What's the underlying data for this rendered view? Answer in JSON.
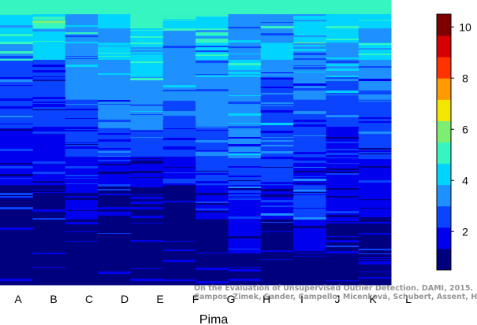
{
  "chart_data": {
    "type": "heatmap",
    "xlabel": "Pima",
    "columns": [
      "A",
      "B",
      "C",
      "D",
      "E",
      "F",
      "G",
      "H",
      "I",
      "J",
      "K",
      "L"
    ],
    "colorbar": {
      "ticks": [
        "2",
        "4",
        "6",
        "8",
        "10"
      ],
      "tick_values": [
        2,
        4,
        6,
        8,
        10
      ],
      "range": [
        0.5,
        10.5
      ],
      "palette": [
        "#00007f",
        "#0000ee",
        "#0b44ff",
        "#1e90ff",
        "#00d4ff",
        "#36f5c0",
        "#7dee72",
        "#f5e600",
        "#ff9a00",
        "#ff3300",
        "#d40000",
        "#7f0000"
      ]
    },
    "bands": [
      {
        "top": 0.0,
        "height": 0.05,
        "values": [
          5.0,
          5.0,
          5.0,
          5.0,
          5.0,
          5.0,
          5.0,
          5.0,
          5.0,
          5.0,
          5.0,
          5.0
        ]
      },
      {
        "top": 0.05,
        "height": 0.05,
        "values": [
          4.2,
          4.8,
          3.6,
          4.0,
          5.0,
          4.3,
          4.0,
          3.4,
          3.8,
          4.5,
          4.0,
          4.2
        ]
      },
      {
        "top": 0.1,
        "height": 0.05,
        "values": [
          4.0,
          4.5,
          3.8,
          3.5,
          4.5,
          3.8,
          4.8,
          3.6,
          3.2,
          4.5,
          4.4,
          3.6
        ]
      },
      {
        "top": 0.15,
        "height": 0.06,
        "values": [
          3.8,
          4.0,
          3.3,
          4.0,
          4.3,
          3.7,
          3.9,
          3.4,
          4.4,
          3.7,
          3.8,
          4.2
        ]
      },
      {
        "top": 0.21,
        "height": 0.06,
        "values": [
          2.7,
          2.5,
          3.0,
          3.6,
          4.6,
          3.5,
          3.2,
          4.0,
          3.0,
          3.4,
          3.1,
          3.7
        ]
      },
      {
        "top": 0.27,
        "height": 0.08,
        "values": [
          2.3,
          2.4,
          3.0,
          3.2,
          3.8,
          3.0,
          3.4,
          3.6,
          2.6,
          3.0,
          2.8,
          3.0
        ]
      },
      {
        "top": 0.35,
        "height": 0.1,
        "values": [
          2.3,
          2.3,
          2.4,
          3.0,
          3.2,
          2.6,
          3.3,
          3.4,
          2.7,
          2.7,
          2.5,
          2.4
        ]
      },
      {
        "top": 0.45,
        "height": 0.1,
        "values": [
          2.1,
          2.1,
          2.3,
          2.6,
          2.3,
          2.3,
          2.7,
          3.0,
          2.5,
          2.3,
          2.1,
          2.2
        ]
      },
      {
        "top": 0.55,
        "height": 0.1,
        "values": [
          1.9,
          1.9,
          2.1,
          2.0,
          1.5,
          1.6,
          2.2,
          2.4,
          2.4,
          2.1,
          1.8,
          1.9
        ]
      },
      {
        "top": 0.65,
        "height": 0.12,
        "values": [
          1.3,
          1.3,
          1.5,
          1.2,
          1.1,
          1.2,
          1.6,
          1.9,
          2.0,
          2.5,
          1.4,
          1.5
        ]
      },
      {
        "top": 0.77,
        "height": 0.12,
        "values": [
          1.1,
          1.1,
          1.1,
          1.1,
          1.0,
          1.1,
          1.3,
          1.6,
          1.3,
          1.7,
          1.2,
          1.2
        ]
      },
      {
        "top": 0.89,
        "height": 0.11,
        "values": [
          1.0,
          1.0,
          1.0,
          1.0,
          1.0,
          1.0,
          1.0,
          1.2,
          1.1,
          1.2,
          1.0,
          1.0
        ]
      }
    ],
    "grid": false,
    "legend": "right colorbar"
  },
  "watermark": {
    "line1": "On the Evaluation of Unsupervised Outlier Detection. DAMI, 2015.",
    "line2": "Campos, Zimek, Sander, Campello, Micenková, Schubert, Assent, Houle"
  }
}
